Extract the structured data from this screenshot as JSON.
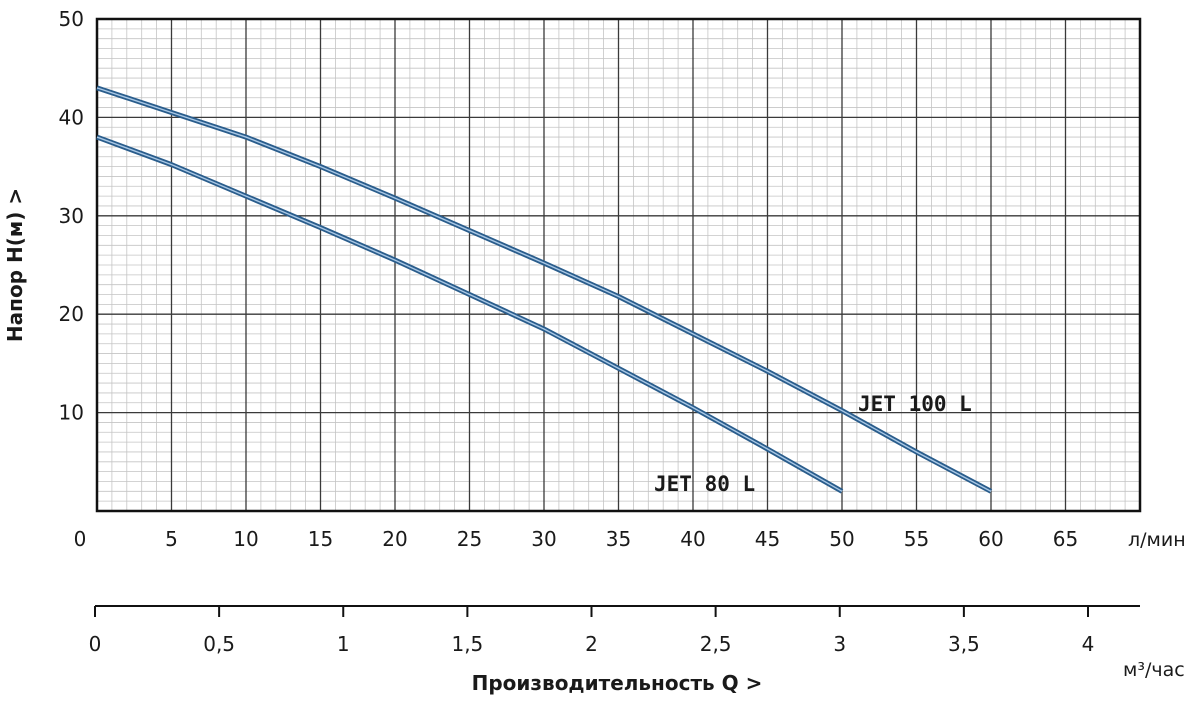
{
  "chart_data": {
    "type": "line",
    "ylabel": "Напор   H(м)  >",
    "ylim": [
      0,
      50
    ],
    "yticks": [
      "50",
      "40",
      "30",
      "20",
      "10"
    ],
    "y_tick_values": [
      50,
      40,
      30,
      20,
      10
    ],
    "x_primary": {
      "unit": "л/мин",
      "range": [
        0,
        70
      ],
      "ticks": [
        "0",
        "5",
        "10",
        "15",
        "20",
        "25",
        "30",
        "35",
        "40",
        "45",
        "50",
        "55",
        "60",
        "65"
      ],
      "tick_values": [
        0,
        5,
        10,
        15,
        20,
        25,
        30,
        35,
        40,
        45,
        50,
        55,
        60,
        65
      ]
    },
    "x_secondary": {
      "unit": "м³/час",
      "ticks": [
        "0",
        "0,5",
        "1",
        "1,5",
        "2",
        "2,5",
        "3",
        "3,5",
        "4"
      ],
      "tick_values": [
        0,
        0.5,
        1,
        1.5,
        2,
        2.5,
        3,
        3.5,
        4
      ]
    },
    "xlabel": "Производительность Q  >",
    "grid": true,
    "series": [
      {
        "name": "JET 100 L",
        "color": "#2a5d8c",
        "x": [
          0,
          5,
          10,
          15,
          20,
          25,
          30,
          35,
          40,
          45,
          50,
          55,
          60
        ],
        "y": [
          43,
          40.5,
          38,
          35,
          31.8,
          28.5,
          25.2,
          21.8,
          18,
          14.2,
          10.2,
          6,
          2
        ]
      },
      {
        "name": "JET 80 L",
        "color": "#2a5d8c",
        "x": [
          0,
          5,
          10,
          15,
          20,
          25,
          30,
          35,
          40,
          45,
          50
        ],
        "y": [
          38,
          35.2,
          32,
          28.8,
          25.5,
          22,
          18.5,
          14.5,
          10.5,
          6.3,
          2
        ]
      }
    ]
  }
}
